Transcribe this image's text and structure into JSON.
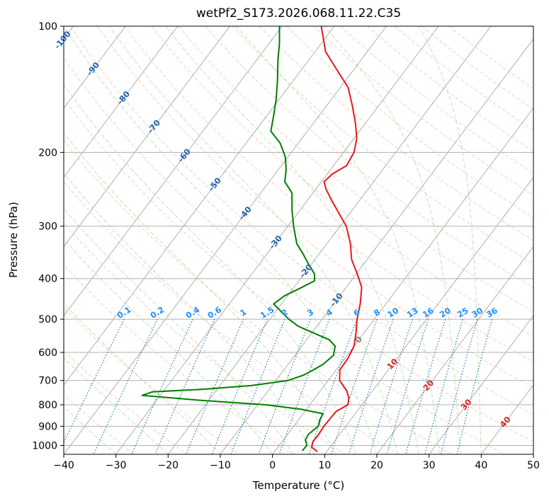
{
  "chart_data": {
    "type": "line",
    "title": "wetPf2_S173.2026.068.11.22.C35",
    "xlabel": "Temperature (°C)",
    "ylabel": "Pressure (hPa)",
    "xlim": [
      -40,
      50
    ],
    "ylim": [
      1050,
      100
    ],
    "yscale": "log",
    "grid": true,
    "x_ticks": [
      -40,
      -30,
      -20,
      -10,
      0,
      10,
      20,
      30,
      40,
      50
    ],
    "y_ticks": [
      1000,
      900,
      800,
      700,
      600,
      500,
      400,
      300,
      200,
      100
    ],
    "skew": true,
    "series": [
      {
        "color": "#e41a1c",
        "points": [
          {
            "p": 1035,
            "t": 8.2
          },
          {
            "p": 1010,
            "t": 6.5
          },
          {
            "p": 980,
            "t": 5.9
          },
          {
            "p": 950,
            "t": 6.0
          },
          {
            "p": 900,
            "t": 5.8
          },
          {
            "p": 860,
            "t": 5.9
          },
          {
            "p": 830,
            "t": 6.0
          },
          {
            "p": 800,
            "t": 7.3
          },
          {
            "p": 770,
            "t": 6.5
          },
          {
            "p": 740,
            "t": 5.0
          },
          {
            "p": 700,
            "t": 2.2
          },
          {
            "p": 660,
            "t": 0.7
          },
          {
            "p": 620,
            "t": 0.6
          },
          {
            "p": 580,
            "t": 0.0
          },
          {
            "p": 540,
            "t": -1.5
          },
          {
            "p": 500,
            "t": -3.3
          },
          {
            "p": 460,
            "t": -4.9
          },
          {
            "p": 420,
            "t": -7.0
          },
          {
            "p": 390,
            "t": -9.8
          },
          {
            "p": 360,
            "t": -13.0
          },
          {
            "p": 330,
            "t": -15.5
          },
          {
            "p": 300,
            "t": -18.8
          },
          {
            "p": 280,
            "t": -22.0
          },
          {
            "p": 260,
            "t": -25.4
          },
          {
            "p": 245,
            "t": -28.0
          },
          {
            "p": 235,
            "t": -29.5
          },
          {
            "p": 225,
            "t": -29.0
          },
          {
            "p": 215,
            "t": -27.5
          },
          {
            "p": 200,
            "t": -28.0
          },
          {
            "p": 185,
            "t": -29.5
          },
          {
            "p": 170,
            "t": -32.0
          },
          {
            "p": 155,
            "t": -35.0
          },
          {
            "p": 140,
            "t": -38.5
          },
          {
            "p": 125,
            "t": -44.0
          },
          {
            "p": 115,
            "t": -48.0
          },
          {
            "p": 100,
            "t": -52.5
          }
        ]
      },
      {
        "color": "#008000",
        "points": [
          {
            "p": 1030,
            "t": 5.2
          },
          {
            "p": 1000,
            "t": 5.3
          },
          {
            "p": 970,
            "t": 4.2
          },
          {
            "p": 940,
            "t": 4.0
          },
          {
            "p": 900,
            "t": 4.7
          },
          {
            "p": 870,
            "t": 4.1
          },
          {
            "p": 840,
            "t": 3.8
          },
          {
            "p": 820,
            "t": -1.0
          },
          {
            "p": 800,
            "t": -8.5
          },
          {
            "p": 780,
            "t": -22.0
          },
          {
            "p": 760,
            "t": -33.5
          },
          {
            "p": 745,
            "t": -32.0
          },
          {
            "p": 735,
            "t": -23.0
          },
          {
            "p": 720,
            "t": -14.0
          },
          {
            "p": 700,
            "t": -7.7
          },
          {
            "p": 680,
            "t": -5.5
          },
          {
            "p": 660,
            "t": -4.3
          },
          {
            "p": 640,
            "t": -3.3
          },
          {
            "p": 610,
            "t": -2.6
          },
          {
            "p": 580,
            "t": -3.6
          },
          {
            "p": 560,
            "t": -5.6
          },
          {
            "p": 540,
            "t": -9.5
          },
          {
            "p": 520,
            "t": -13.5
          },
          {
            "p": 500,
            "t": -16.4
          },
          {
            "p": 475,
            "t": -19.5
          },
          {
            "p": 460,
            "t": -21.5
          },
          {
            "p": 440,
            "t": -20.6
          },
          {
            "p": 420,
            "t": -18.5
          },
          {
            "p": 405,
            "t": -17.0
          },
          {
            "p": 390,
            "t": -18.0
          },
          {
            "p": 370,
            "t": -20.5
          },
          {
            "p": 350,
            "t": -23.0
          },
          {
            "p": 330,
            "t": -25.8
          },
          {
            "p": 300,
            "t": -28.9
          },
          {
            "p": 275,
            "t": -31.5
          },
          {
            "p": 250,
            "t": -34.0
          },
          {
            "p": 235,
            "t": -37.0
          },
          {
            "p": 220,
            "t": -38.5
          },
          {
            "p": 205,
            "t": -40.5
          },
          {
            "p": 190,
            "t": -43.5
          },
          {
            "p": 178,
            "t": -47.0
          },
          {
            "p": 165,
            "t": -48.5
          },
          {
            "p": 150,
            "t": -50.5
          },
          {
            "p": 135,
            "t": -53.0
          },
          {
            "p": 120,
            "t": -56.0
          },
          {
            "p": 110,
            "t": -58.0
          },
          {
            "p": 100,
            "t": -60.5
          }
        ]
      }
    ],
    "mixing_ratio_labels": [
      "0.1",
      "0.2",
      "0.4",
      "0.6",
      "1",
      "1.5",
      "2",
      "3",
      "4",
      "6",
      "8",
      "10",
      "13",
      "16",
      "20",
      "25",
      "30",
      "36"
    ],
    "dry_adiabat_labels": [
      "-100",
      "-90",
      "-80",
      "-70",
      "-60",
      "-50",
      "-40",
      "-30",
      "-20",
      "-10"
    ],
    "moist_adiabat_labels": [
      "0",
      "10",
      "20",
      "30",
      "40"
    ],
    "colors": {
      "temperature": "#e41a1c",
      "dewpoint": "#008000",
      "isotherm": "#b0b0b0",
      "dry_adiabat": "#f4a582",
      "moist_adiabat": "#a1d99b",
      "mixing_ratio": "#1f78b4",
      "dry_adiabat_label": "#2166ac",
      "mixing_ratio_label": "#1e90ff",
      "moist_adiabat_label": "#d62728"
    }
  }
}
